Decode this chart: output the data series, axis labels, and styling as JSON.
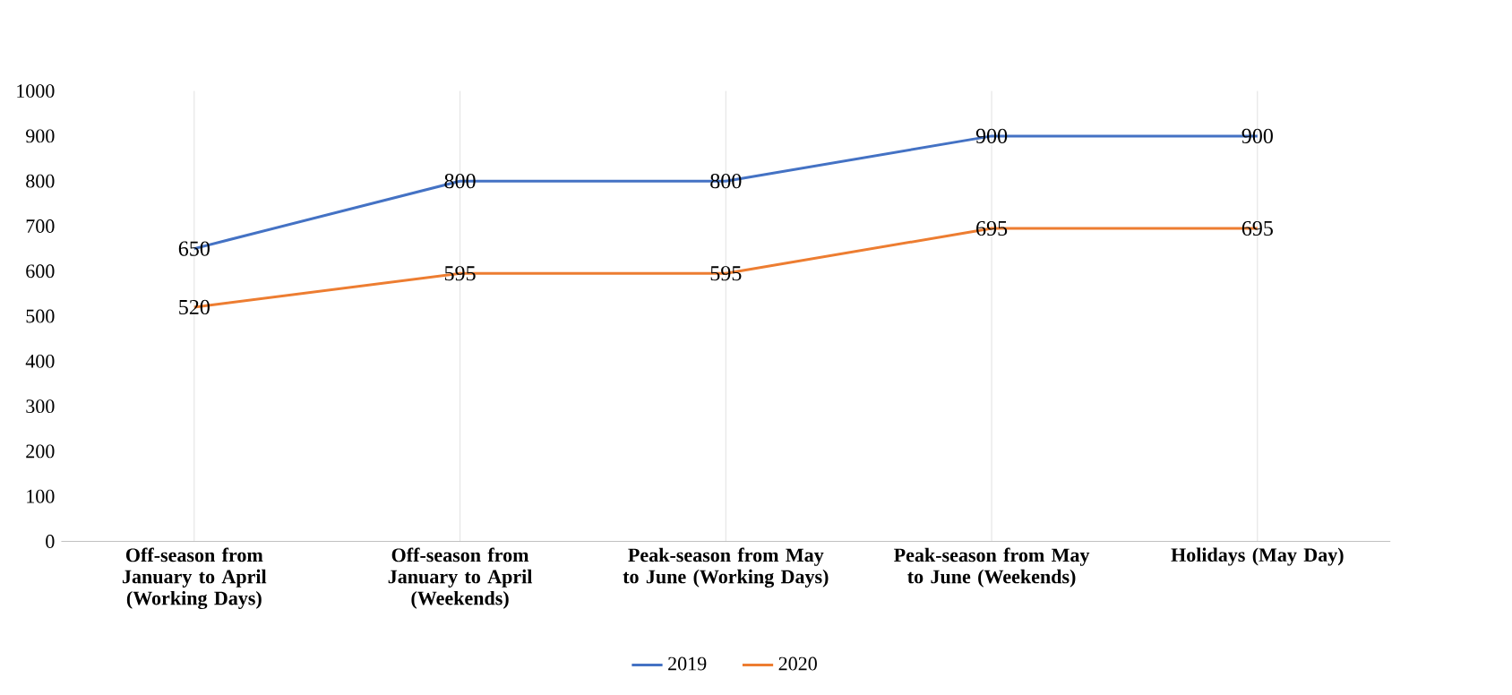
{
  "chart_data": {
    "type": "line",
    "categories": [
      "Off-season from January to April (Working Days)",
      "Off-season from January to April (Weekends)",
      "Peak-season from May to June (Working Days)",
      "Peak-season from May to June (Weekends)",
      "Holidays (May Day)"
    ],
    "series": [
      {
        "name": "2019",
        "color": "#4472c4",
        "values": [
          650,
          800,
          800,
          900,
          900
        ]
      },
      {
        "name": "2020",
        "color": "#ed7d31",
        "values": [
          520,
          595,
          595,
          695,
          695
        ]
      }
    ],
    "ylim": [
      0,
      1000
    ],
    "yticks": [
      0,
      100,
      200,
      300,
      400,
      500,
      600,
      700,
      800,
      900,
      1000
    ],
    "grid": "x",
    "legend": "bottom",
    "data_labels": true,
    "marker": "none",
    "line_style": "solid"
  }
}
